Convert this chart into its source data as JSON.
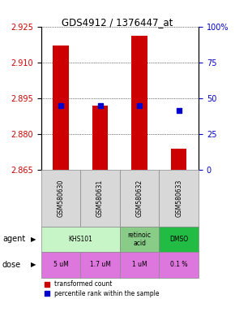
{
  "title": "GDS4912 / 1376447_at",
  "samples": [
    "GSM580630",
    "GSM580631",
    "GSM580632",
    "GSM580633"
  ],
  "red_values": [
    2.917,
    2.892,
    2.921,
    2.874
  ],
  "blue_values": [
    2.892,
    2.892,
    2.892,
    2.89
  ],
  "ymin": 2.865,
  "ymax": 2.925,
  "yticks": [
    2.865,
    2.88,
    2.895,
    2.91,
    2.925
  ],
  "y2tick_pcts": [
    0,
    25,
    50,
    75,
    100
  ],
  "y2tick_labels": [
    "0",
    "25",
    "50",
    "75",
    "100%"
  ],
  "dose_labels": [
    "5 uM",
    "1.7 uM",
    "1 uM",
    "0.1 %"
  ],
  "dose_row_color": "#dd77dd",
  "bar_color": "#cc0000",
  "blue_color": "#0000cc",
  "legend_red": "transformed count",
  "legend_blue": "percentile rank within the sample",
  "ylabel_color_red": "#cc0000",
  "ylabel_color_blue": "#0000cc",
  "sample_bg": "#d8d8d8",
  "agent_groups": [
    {
      "cols": [
        0,
        1
      ],
      "label": "KHS101",
      "color": "#c8f5c8"
    },
    {
      "cols": [
        2
      ],
      "label": "retinoic\nacid",
      "color": "#88cc88"
    },
    {
      "cols": [
        3
      ],
      "label": "DMSO",
      "color": "#22bb44"
    }
  ]
}
